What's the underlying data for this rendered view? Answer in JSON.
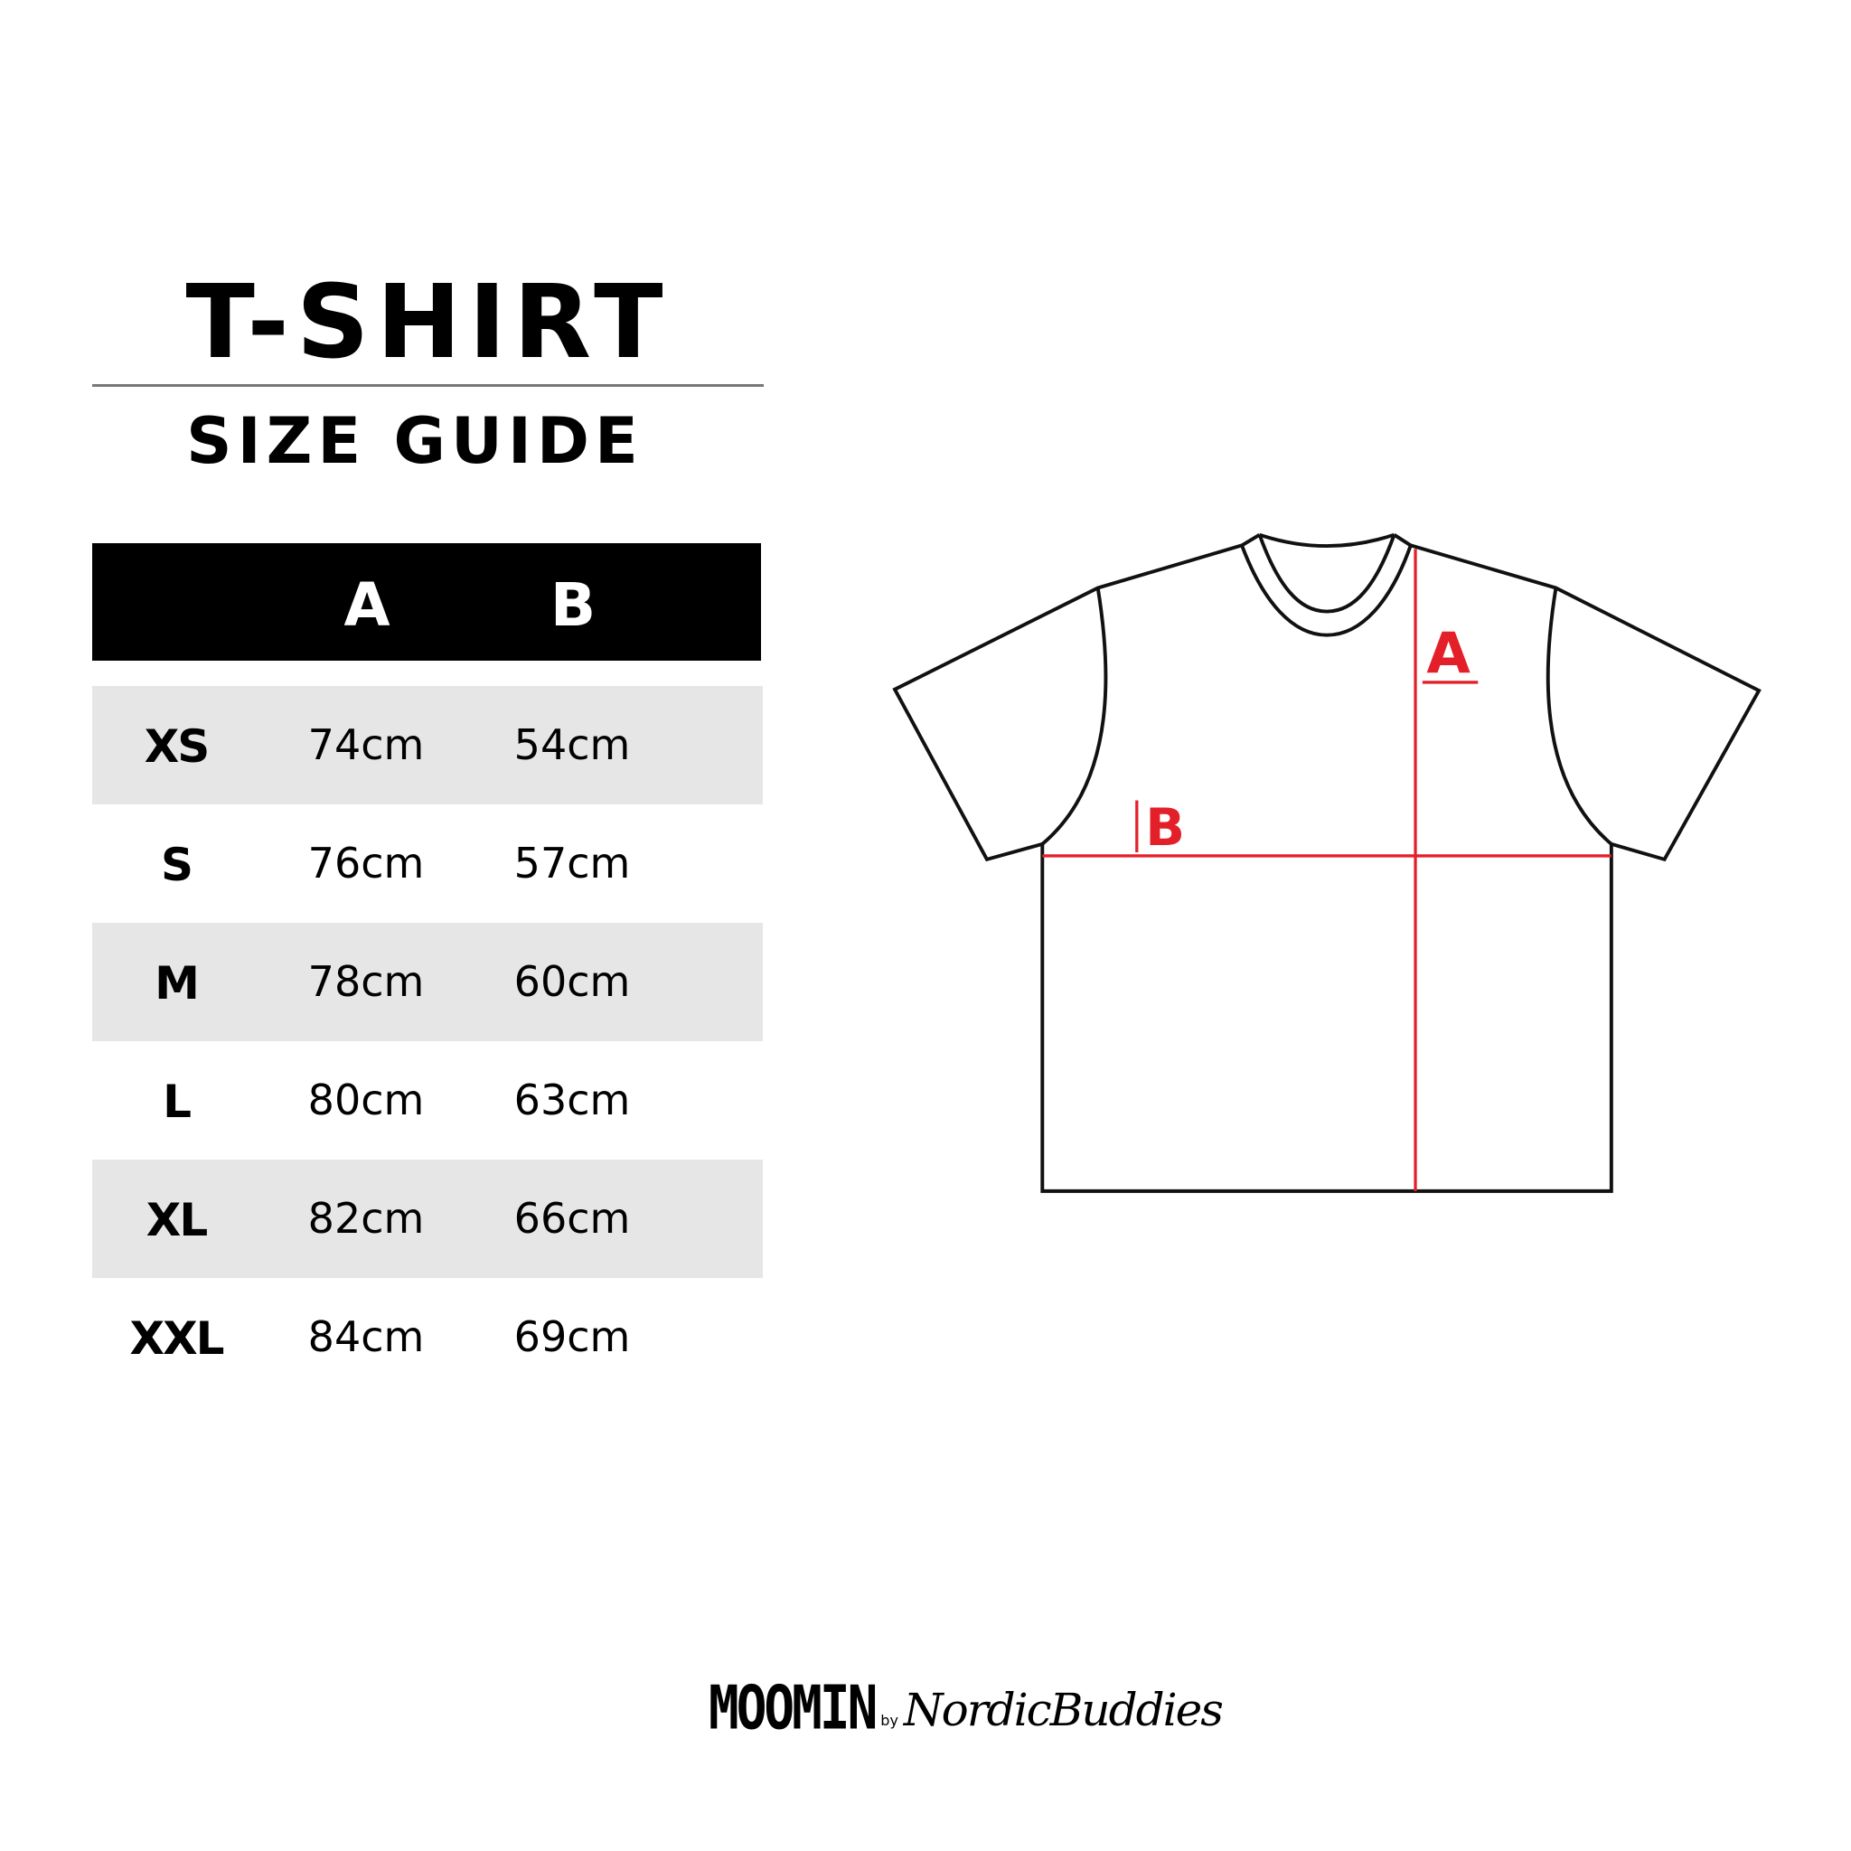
{
  "header": {
    "title": "T-SHIRT",
    "subtitle": "SIZE GUIDE"
  },
  "table": {
    "columns": [
      "",
      "A",
      "B"
    ],
    "rows": [
      {
        "size": "XS",
        "a": "74cm",
        "b": "54cm"
      },
      {
        "size": "S",
        "a": "76cm",
        "b": "57cm"
      },
      {
        "size": "M",
        "a": "78cm",
        "b": "60cm"
      },
      {
        "size": "L",
        "a": "80cm",
        "b": "63cm"
      },
      {
        "size": "XL",
        "a": "82cm",
        "b": "66cm"
      },
      {
        "size": "XXL",
        "a": "84cm",
        "b": "69cm"
      }
    ],
    "stripe_color": "#e6e6e6"
  },
  "diagram": {
    "label_a": "A",
    "label_b": "B",
    "measure_color": "#e3202a"
  },
  "logo": {
    "brand": "MOOMIN",
    "by": "by",
    "partner": "NordicBuddies"
  }
}
